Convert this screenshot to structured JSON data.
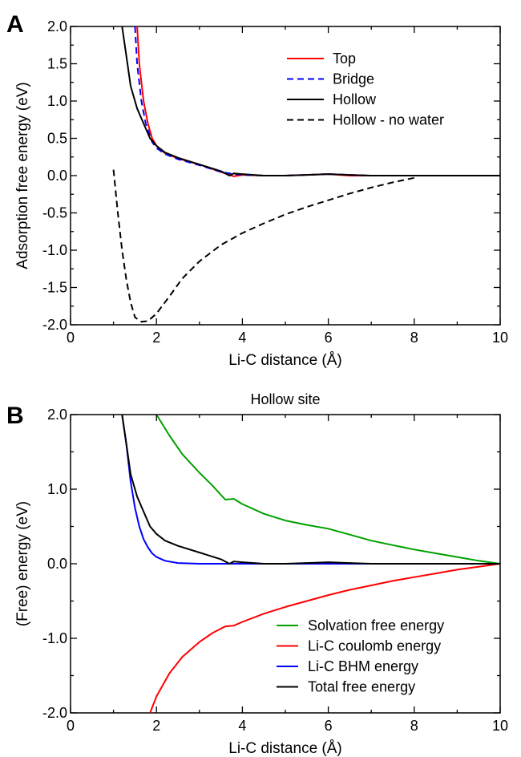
{
  "chart_data": [
    {
      "panel": "A",
      "type": "line",
      "title": "",
      "xlabel": "Li-C distance (Å)",
      "ylabel": "Adsorption free energy (eV)",
      "xlim": [
        0,
        10
      ],
      "ylim": [
        -2.0,
        2.0
      ],
      "x_ticks": [
        0,
        2,
        4,
        6,
        8,
        10
      ],
      "y_ticks": [
        -2.0,
        -1.5,
        -1.0,
        -0.5,
        0.0,
        0.5,
        1.0,
        1.5,
        2.0
      ],
      "x_tick_labels": [
        "0",
        "2",
        "4",
        "6",
        "8",
        "10"
      ],
      "y_tick_labels": [
        "-2.0",
        "-1.5",
        "-1.0",
        "-0.5",
        "0.0",
        "0.5",
        "1.0",
        "1.5",
        "2.0"
      ],
      "legend_position": "top-right",
      "series": [
        {
          "name": "Top",
          "color": "#ff0000",
          "dash": "solid",
          "points": [
            [
              1.55,
              2.0
            ],
            [
              1.6,
              1.5
            ],
            [
              1.7,
              1.0
            ],
            [
              1.8,
              0.7
            ],
            [
              1.9,
              0.5
            ],
            [
              2.0,
              0.4
            ],
            [
              2.2,
              0.3
            ],
            [
              2.5,
              0.23
            ],
            [
              3.0,
              0.15
            ],
            [
              3.5,
              0.05
            ],
            [
              3.8,
              -0.01
            ],
            [
              4.0,
              0.01
            ],
            [
              4.5,
              0.0
            ],
            [
              5.0,
              0.0
            ],
            [
              5.5,
              0.01
            ],
            [
              6.0,
              0.02
            ],
            [
              6.5,
              0.0
            ],
            [
              7.0,
              0.0
            ],
            [
              8.0,
              0.0
            ],
            [
              9.0,
              0.0
            ],
            [
              10.0,
              0.0
            ]
          ]
        },
        {
          "name": "Bridge",
          "color": "#0000ff",
          "dash": "dashed",
          "points": [
            [
              1.5,
              2.0
            ],
            [
              1.55,
              1.5
            ],
            [
              1.65,
              1.0
            ],
            [
              1.75,
              0.7
            ],
            [
              1.9,
              0.45
            ],
            [
              2.0,
              0.37
            ],
            [
              2.2,
              0.29
            ],
            [
              2.5,
              0.22
            ],
            [
              3.0,
              0.14
            ],
            [
              3.5,
              0.05
            ],
            [
              3.8,
              0.02
            ],
            [
              4.0,
              0.01
            ],
            [
              4.5,
              0.0
            ],
            [
              5.0,
              0.0
            ],
            [
              5.5,
              0.01
            ],
            [
              6.0,
              0.02
            ],
            [
              6.5,
              0.01
            ],
            [
              7.0,
              0.0
            ],
            [
              8.0,
              0.0
            ],
            [
              9.0,
              0.0
            ],
            [
              10.0,
              0.0
            ]
          ]
        },
        {
          "name": "Hollow",
          "color": "#000000",
          "dash": "solid",
          "points": [
            [
              1.2,
              2.0
            ],
            [
              1.3,
              1.6
            ],
            [
              1.4,
              1.2
            ],
            [
              1.55,
              0.9
            ],
            [
              1.7,
              0.7
            ],
            [
              1.85,
              0.5
            ],
            [
              2.0,
              0.4
            ],
            [
              2.2,
              0.31
            ],
            [
              2.5,
              0.24
            ],
            [
              3.0,
              0.15
            ],
            [
              3.5,
              0.06
            ],
            [
              3.7,
              0.0
            ],
            [
              3.8,
              0.03
            ],
            [
              4.0,
              0.02
            ],
            [
              4.5,
              0.0
            ],
            [
              5.0,
              0.0
            ],
            [
              5.5,
              0.01
            ],
            [
              6.0,
              0.02
            ],
            [
              6.5,
              0.01
            ],
            [
              7.0,
              0.0
            ],
            [
              8.0,
              0.0
            ],
            [
              9.0,
              0.0
            ],
            [
              10.0,
              0.0
            ]
          ]
        },
        {
          "name": "Hollow - no water",
          "color": "#000000",
          "dash": "dashed",
          "points": [
            [
              1.0,
              0.08
            ],
            [
              1.1,
              -0.5
            ],
            [
              1.2,
              -1.0
            ],
            [
              1.3,
              -1.4
            ],
            [
              1.4,
              -1.7
            ],
            [
              1.5,
              -1.9
            ],
            [
              1.65,
              -1.96
            ],
            [
              1.8,
              -1.95
            ],
            [
              2.0,
              -1.85
            ],
            [
              2.3,
              -1.62
            ],
            [
              2.6,
              -1.38
            ],
            [
              3.0,
              -1.15
            ],
            [
              3.5,
              -0.93
            ],
            [
              4.0,
              -0.77
            ],
            [
              4.5,
              -0.64
            ],
            [
              5.0,
              -0.52
            ],
            [
              5.5,
              -0.42
            ],
            [
              6.0,
              -0.33
            ],
            [
              6.5,
              -0.24
            ],
            [
              7.0,
              -0.16
            ],
            [
              7.5,
              -0.09
            ],
            [
              8.0,
              -0.03
            ]
          ]
        }
      ]
    },
    {
      "panel": "B",
      "type": "line",
      "title": "Hollow site",
      "xlabel": "Li-C distance (Å)",
      "ylabel": "(Free) energy (eV)",
      "xlim": [
        0,
        10
      ],
      "ylim": [
        -2.0,
        2.0
      ],
      "x_ticks": [
        0,
        2,
        4,
        6,
        8,
        10
      ],
      "y_ticks": [
        -2.0,
        -1.0,
        0.0,
        1.0,
        2.0
      ],
      "x_tick_labels": [
        "0",
        "2",
        "4",
        "6",
        "8",
        "10"
      ],
      "y_tick_labels": [
        "-2.0",
        "-1.0",
        "0.0",
        "1.0",
        "2.0"
      ],
      "legend_position": "bottom-right",
      "series": [
        {
          "name": "Solvation free energy",
          "color": "#00a000",
          "dash": "solid",
          "points": [
            [
              2.0,
              2.0
            ],
            [
              2.3,
              1.72
            ],
            [
              2.6,
              1.47
            ],
            [
              3.0,
              1.22
            ],
            [
              3.3,
              1.05
            ],
            [
              3.6,
              0.86
            ],
            [
              3.8,
              0.87
            ],
            [
              4.0,
              0.8
            ],
            [
              4.5,
              0.67
            ],
            [
              5.0,
              0.58
            ],
            [
              5.5,
              0.52
            ],
            [
              6.0,
              0.47
            ],
            [
              6.5,
              0.39
            ],
            [
              7.0,
              0.31
            ],
            [
              7.5,
              0.25
            ],
            [
              8.0,
              0.19
            ],
            [
              8.5,
              0.14
            ],
            [
              9.0,
              0.09
            ],
            [
              9.5,
              0.04
            ],
            [
              10.0,
              0.0
            ]
          ]
        },
        {
          "name": "Li-C coulomb energy",
          "color": "#ff0000",
          "dash": "solid",
          "points": [
            [
              1.85,
              -2.0
            ],
            [
              2.0,
              -1.78
            ],
            [
              2.3,
              -1.47
            ],
            [
              2.6,
              -1.25
            ],
            [
              3.0,
              -1.05
            ],
            [
              3.3,
              -0.93
            ],
            [
              3.6,
              -0.84
            ],
            [
              3.8,
              -0.83
            ],
            [
              4.0,
              -0.78
            ],
            [
              4.5,
              -0.67
            ],
            [
              5.0,
              -0.58
            ],
            [
              5.5,
              -0.5
            ],
            [
              6.0,
              -0.42
            ],
            [
              6.5,
              -0.35
            ],
            [
              7.0,
              -0.29
            ],
            [
              7.5,
              -0.23
            ],
            [
              8.0,
              -0.18
            ],
            [
              8.5,
              -0.13
            ],
            [
              9.0,
              -0.08
            ],
            [
              9.5,
              -0.04
            ],
            [
              10.0,
              0.0
            ]
          ]
        },
        {
          "name": "Li-C BHM energy",
          "color": "#0000ff",
          "dash": "solid",
          "points": [
            [
              1.2,
              2.0
            ],
            [
              1.3,
              1.6
            ],
            [
              1.4,
              1.1
            ],
            [
              1.5,
              0.75
            ],
            [
              1.6,
              0.5
            ],
            [
              1.7,
              0.33
            ],
            [
              1.8,
              0.22
            ],
            [
              1.9,
              0.14
            ],
            [
              2.0,
              0.09
            ],
            [
              2.2,
              0.04
            ],
            [
              2.5,
              0.01
            ],
            [
              3.0,
              0.0
            ],
            [
              4.0,
              0.0
            ],
            [
              5.0,
              0.0
            ],
            [
              6.0,
              0.0
            ],
            [
              7.0,
              0.0
            ],
            [
              8.0,
              0.0
            ],
            [
              9.0,
              0.0
            ],
            [
              10.0,
              0.0
            ]
          ]
        },
        {
          "name": "Total free energy",
          "color": "#000000",
          "dash": "solid",
          "points": [
            [
              1.2,
              2.0
            ],
            [
              1.3,
              1.6
            ],
            [
              1.4,
              1.2
            ],
            [
              1.55,
              0.9
            ],
            [
              1.7,
              0.7
            ],
            [
              1.85,
              0.5
            ],
            [
              2.0,
              0.4
            ],
            [
              2.2,
              0.31
            ],
            [
              2.5,
              0.24
            ],
            [
              3.0,
              0.15
            ],
            [
              3.5,
              0.06
            ],
            [
              3.7,
              0.0
            ],
            [
              3.8,
              0.03
            ],
            [
              4.0,
              0.02
            ],
            [
              4.5,
              0.0
            ],
            [
              5.0,
              0.0
            ],
            [
              5.5,
              0.01
            ],
            [
              6.0,
              0.02
            ],
            [
              6.5,
              0.01
            ],
            [
              7.0,
              0.0
            ],
            [
              8.0,
              0.0
            ],
            [
              9.0,
              0.0
            ],
            [
              10.0,
              0.0
            ]
          ]
        }
      ]
    }
  ]
}
